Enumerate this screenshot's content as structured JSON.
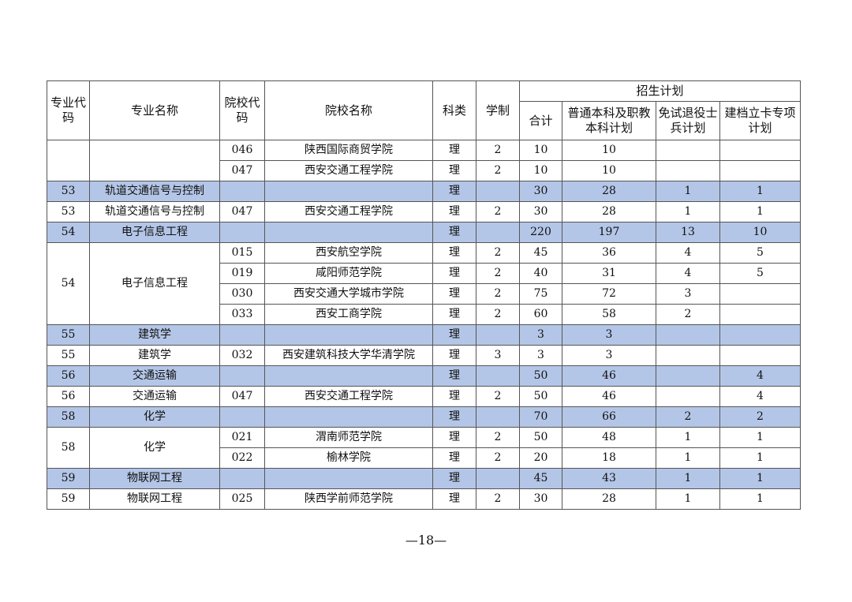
{
  "header": {
    "major_code": "专业代码",
    "major_name": "专业名称",
    "school_code": "院校代码",
    "school_name": "院校名称",
    "category": "科类",
    "duration": "学制",
    "plan_group": "招生计划",
    "total": "合计",
    "regular": "普通本科及职教本科计划",
    "veteran": "免试退役士兵计划",
    "poverty": "建档立卡专项计划"
  },
  "continued": [
    {
      "school_code": "046",
      "school_name": "陕西国际商贸学院",
      "category": "理",
      "duration": "2",
      "total": "10",
      "regular": "10",
      "veteran": "",
      "poverty": ""
    },
    {
      "school_code": "047",
      "school_name": "西安交通工程学院",
      "category": "理",
      "duration": "2",
      "total": "10",
      "regular": "10",
      "veteran": "",
      "poverty": ""
    }
  ],
  "majors": [
    {
      "code": "53",
      "name": "轨道交通信号与控制",
      "summary": {
        "category": "理",
        "total": "30",
        "regular": "28",
        "veteran": "1",
        "poverty": "1"
      },
      "detail_code": "53",
      "detail_name": "轨道交通信号与控制",
      "rows": [
        {
          "school_code": "047",
          "school_name": "西安交通工程学院",
          "category": "理",
          "duration": "2",
          "total": "30",
          "regular": "28",
          "veteran": "1",
          "poverty": "1"
        }
      ]
    },
    {
      "code": "54",
      "name": "电子信息工程",
      "summary": {
        "category": "理",
        "total": "220",
        "regular": "197",
        "veteran": "13",
        "poverty": "10"
      },
      "detail_code": "54",
      "detail_name": "电子信息工程",
      "rows": [
        {
          "school_code": "015",
          "school_name": "西安航空学院",
          "category": "理",
          "duration": "2",
          "total": "45",
          "regular": "36",
          "veteran": "4",
          "poverty": "5"
        },
        {
          "school_code": "019",
          "school_name": "咸阳师范学院",
          "category": "理",
          "duration": "2",
          "total": "40",
          "regular": "31",
          "veteran": "4",
          "poverty": "5"
        },
        {
          "school_code": "030",
          "school_name": "西安交通大学城市学院",
          "category": "理",
          "duration": "2",
          "total": "75",
          "regular": "72",
          "veteran": "3",
          "poverty": ""
        },
        {
          "school_code": "033",
          "school_name": "西安工商学院",
          "category": "理",
          "duration": "2",
          "total": "60",
          "regular": "58",
          "veteran": "2",
          "poverty": ""
        }
      ]
    },
    {
      "code": "55",
      "name": "建筑学",
      "summary": {
        "category": "理",
        "total": "3",
        "regular": "3",
        "veteran": "",
        "poverty": ""
      },
      "detail_code": "55",
      "detail_name": "建筑学",
      "rows": [
        {
          "school_code": "032",
          "school_name": "西安建筑科技大学华清学院",
          "category": "理",
          "duration": "3",
          "total": "3",
          "regular": "3",
          "veteran": "",
          "poverty": ""
        }
      ]
    },
    {
      "code": "56",
      "name": "交通运输",
      "summary": {
        "category": "理",
        "total": "50",
        "regular": "46",
        "veteran": "",
        "poverty": "4"
      },
      "detail_code": "56",
      "detail_name": "交通运输",
      "rows": [
        {
          "school_code": "047",
          "school_name": "西安交通工程学院",
          "category": "理",
          "duration": "2",
          "total": "50",
          "regular": "46",
          "veteran": "",
          "poverty": "4"
        }
      ]
    },
    {
      "code": "58",
      "name": "化学",
      "summary": {
        "category": "理",
        "total": "70",
        "regular": "66",
        "veteran": "2",
        "poverty": "2"
      },
      "detail_code": "58",
      "detail_name": "化学",
      "rows": [
        {
          "school_code": "021",
          "school_name": "渭南师范学院",
          "category": "理",
          "duration": "2",
          "total": "50",
          "regular": "48",
          "veteran": "1",
          "poverty": "1"
        },
        {
          "school_code": "022",
          "school_name": "榆林学院",
          "category": "理",
          "duration": "2",
          "total": "20",
          "regular": "18",
          "veteran": "1",
          "poverty": "1"
        }
      ]
    },
    {
      "code": "59",
      "name": "物联网工程",
      "summary": {
        "category": "理",
        "total": "45",
        "regular": "43",
        "veteran": "1",
        "poverty": "1"
      },
      "detail_code": "59",
      "detail_name": "物联网工程",
      "rows": [
        {
          "school_code": "025",
          "school_name": "陕西学前师范学院",
          "category": "理",
          "duration": "2",
          "total": "30",
          "regular": "28",
          "veteran": "1",
          "poverty": "1"
        }
      ]
    }
  ],
  "page_number": "—18—"
}
